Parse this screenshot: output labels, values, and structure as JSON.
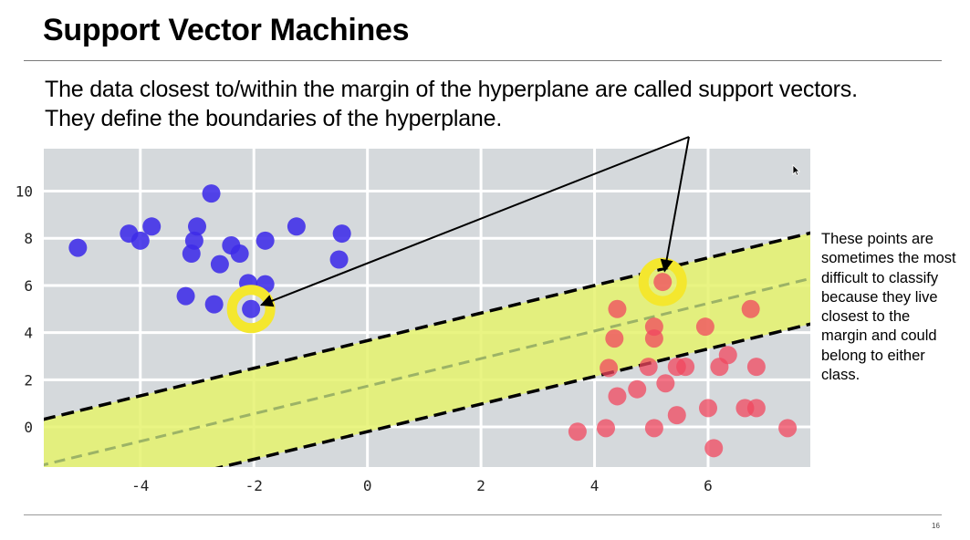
{
  "slide": {
    "title": "Support Vector Machines",
    "body": "The data closest to/within the margin of the hyperplane are called support vectors. They define the boundaries of the hyperplane.",
    "side_note": "These points are sometimes the most difficult to classify because they live closest to the margin and could belong to either class.",
    "page_number": "16"
  },
  "colors": {
    "plot_background": "#d5d9dc",
    "grid": "#ffffff",
    "margin_band": "#e5f26d",
    "margin_line": "#000000",
    "hyperplane": "#9cb366",
    "class_blue": "#3d2be8",
    "class_red": "#f0475f",
    "support_ring": "#f4e72e",
    "arrow": "#000000"
  },
  "chart_data": {
    "type": "scatter",
    "title": "",
    "xlabel": "",
    "ylabel": "",
    "xlim": [
      -5.7,
      7.8
    ],
    "ylim": [
      -1.7,
      11.8
    ],
    "xticks": [
      -4,
      -2,
      0,
      2,
      4,
      6
    ],
    "yticks": [
      0,
      2,
      4,
      6,
      8,
      10
    ],
    "grid": true,
    "legend": "none",
    "hyperplane": {
      "slope": 0.585,
      "intercept": 1.73
    },
    "margin_lines": [
      {
        "slope": 0.585,
        "intercept": 3.66
      },
      {
        "slope": 0.585,
        "intercept": -0.2
      }
    ],
    "series": [
      {
        "class": "blue",
        "points": [
          [
            -5.1,
            7.6
          ],
          [
            -4.2,
            8.2
          ],
          [
            -4.0,
            7.9
          ],
          [
            -3.8,
            8.5
          ],
          [
            -3.0,
            8.5
          ],
          [
            -3.05,
            7.9
          ],
          [
            -3.1,
            7.35
          ],
          [
            -2.75,
            9.9
          ],
          [
            -2.6,
            6.9
          ],
          [
            -2.4,
            7.7
          ],
          [
            -2.25,
            7.35
          ],
          [
            -1.8,
            7.9
          ],
          [
            -1.25,
            8.5
          ],
          [
            -0.45,
            8.2
          ],
          [
            -0.5,
            7.1
          ],
          [
            -3.2,
            5.55
          ],
          [
            -2.7,
            5.2
          ],
          [
            -2.1,
            6.1
          ],
          [
            -1.8,
            6.05
          ],
          [
            -2.05,
            5.0
          ]
        ]
      },
      {
        "class": "red",
        "points": [
          [
            3.7,
            -0.2
          ],
          [
            4.2,
            -0.05
          ],
          [
            4.4,
            1.3
          ],
          [
            4.25,
            2.5
          ],
          [
            4.35,
            3.75
          ],
          [
            4.4,
            5.0
          ],
          [
            4.75,
            1.6
          ],
          [
            4.95,
            2.55
          ],
          [
            5.05,
            4.25
          ],
          [
            5.05,
            3.75
          ],
          [
            5.25,
            1.85
          ],
          [
            5.45,
            2.55
          ],
          [
            5.6,
            2.55
          ],
          [
            5.05,
            -0.05
          ],
          [
            5.45,
            0.5
          ],
          [
            5.95,
            4.25
          ],
          [
            6.0,
            0.8
          ],
          [
            6.1,
            -0.9
          ],
          [
            6.2,
            2.55
          ],
          [
            6.35,
            3.05
          ],
          [
            6.65,
            0.8
          ],
          [
            6.75,
            5.0
          ],
          [
            6.85,
            2.55
          ],
          [
            6.85,
            0.8
          ],
          [
            7.4,
            -0.05
          ],
          [
            5.2,
            6.15
          ]
        ]
      }
    ],
    "support_vectors": [
      [
        -2.05,
        5.0
      ],
      [
        5.2,
        6.15
      ]
    ]
  }
}
